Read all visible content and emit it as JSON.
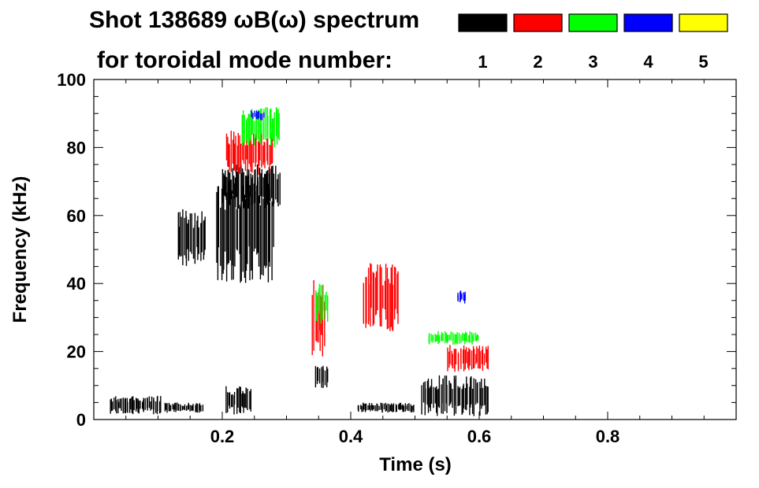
{
  "chart_data": {
    "type": "heatmap",
    "title_line1": "Shot 138689 ωB(ω) spectrum",
    "title_line2": "for toroidal mode number:",
    "xlabel": "Time (s)",
    "ylabel": "Frequency (kHz)",
    "xlim": [
      0.0,
      1.0
    ],
    "ylim": [
      0,
      100
    ],
    "x_ticks": [
      {
        "value": 0.2,
        "label": "0.2"
      },
      {
        "value": 0.4,
        "label": "0.4"
      },
      {
        "value": 0.6,
        "label": "0.6"
      },
      {
        "value": 0.8,
        "label": "0.8"
      }
    ],
    "y_ticks": [
      {
        "value": 0,
        "label": "0"
      },
      {
        "value": 20,
        "label": "20"
      },
      {
        "value": 40,
        "label": "40"
      },
      {
        "value": 60,
        "label": "60"
      },
      {
        "value": 80,
        "label": "80"
      },
      {
        "value": 100,
        "label": "100"
      }
    ],
    "legend": [
      {
        "n": "1",
        "color": "#000000"
      },
      {
        "n": "2",
        "color": "#ff0000"
      },
      {
        "n": "3",
        "color": "#00ff00"
      },
      {
        "n": "4",
        "color": "#0000ff"
      },
      {
        "n": "5",
        "color": "#ffff00"
      }
    ],
    "regions": [
      {
        "mode": 1,
        "t0": 0.025,
        "t1": 0.105,
        "f0": 1.5,
        "f1": 7.0
      },
      {
        "mode": 1,
        "t0": 0.11,
        "t1": 0.17,
        "f0": 2.0,
        "f1": 5.0
      },
      {
        "mode": 1,
        "t0": 0.13,
        "t1": 0.175,
        "f0": 45.0,
        "f1": 62.0
      },
      {
        "mode": 1,
        "t0": 0.19,
        "t1": 0.28,
        "f0": 40.0,
        "f1": 73.0
      },
      {
        "mode": 1,
        "t0": 0.2,
        "t1": 0.29,
        "f0": 62.0,
        "f1": 75.0
      },
      {
        "mode": 1,
        "t0": 0.205,
        "t1": 0.245,
        "f0": 1.5,
        "f1": 10.0
      },
      {
        "mode": 1,
        "t0": 0.345,
        "t1": 0.365,
        "f0": 9.0,
        "f1": 16.0
      },
      {
        "mode": 1,
        "t0": 0.41,
        "t1": 0.5,
        "f0": 2.0,
        "f1": 5.0
      },
      {
        "mode": 1,
        "t0": 0.51,
        "t1": 0.615,
        "f0": 1.0,
        "f1": 13.0
      },
      {
        "mode": 2,
        "t0": 0.205,
        "t1": 0.28,
        "f0": 72.0,
        "f1": 85.0
      },
      {
        "mode": 2,
        "t0": 0.34,
        "t1": 0.36,
        "f0": 18.0,
        "f1": 42.0
      },
      {
        "mode": 2,
        "t0": 0.42,
        "t1": 0.475,
        "f0": 26.0,
        "f1": 46.0
      },
      {
        "mode": 2,
        "t0": 0.55,
        "t1": 0.615,
        "f0": 14.0,
        "f1": 22.0
      },
      {
        "mode": 3,
        "t0": 0.23,
        "t1": 0.29,
        "f0": 80.0,
        "f1": 92.0
      },
      {
        "mode": 3,
        "t0": 0.345,
        "t1": 0.365,
        "f0": 28.0,
        "f1": 40.0
      },
      {
        "mode": 3,
        "t0": 0.52,
        "t1": 0.6,
        "f0": 22.0,
        "f1": 26.0
      },
      {
        "mode": 4,
        "t0": 0.245,
        "t1": 0.265,
        "f0": 88.0,
        "f1": 91.0
      },
      {
        "mode": 4,
        "t0": 0.565,
        "t1": 0.58,
        "f0": 34.0,
        "f1": 38.0
      }
    ]
  }
}
